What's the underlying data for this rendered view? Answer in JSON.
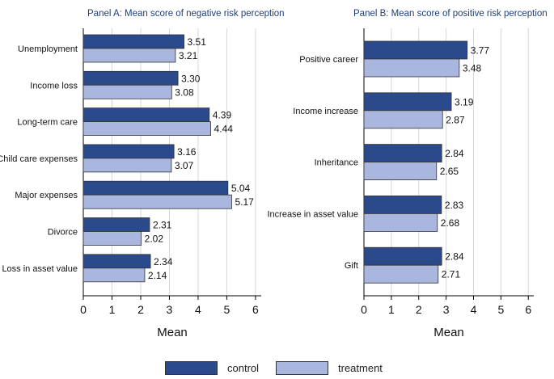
{
  "colors": {
    "control": "#2b4a8b",
    "treatment": "#a9b7df",
    "title": "#1f3f7a",
    "grid": "#d7d7d7"
  },
  "chart_data": [
    {
      "type": "bar",
      "orientation": "horizontal",
      "title": "Panel A: Mean score of negative risk perception",
      "xlabel": "Mean",
      "xlim": [
        0,
        6.2
      ],
      "xticks": [
        0,
        1,
        2,
        3,
        4,
        5,
        6
      ],
      "grid": true,
      "categories": [
        "Unemployment",
        "Income loss",
        "Long-term care",
        "Child care expenses",
        "Major expenses",
        "Divorce",
        "Loss in asset value"
      ],
      "series": [
        {
          "name": "control",
          "values": [
            3.51,
            3.3,
            4.39,
            3.16,
            5.04,
            2.31,
            2.34
          ],
          "labels": [
            "3.51",
            "3.30",
            "4.39",
            "3.16",
            "5.04",
            "2.31",
            "2.34"
          ]
        },
        {
          "name": "treatment",
          "values": [
            3.21,
            3.08,
            4.44,
            3.07,
            5.17,
            2.02,
            2.14
          ],
          "labels": [
            "3.21",
            "3.08",
            "4.44",
            "3.07",
            "5.17",
            "2.02",
            "2.14"
          ]
        }
      ]
    },
    {
      "type": "bar",
      "orientation": "horizontal",
      "title": "Panel B: Mean score of positive risk perception",
      "xlabel": "Mean",
      "xlim": [
        0,
        6.2
      ],
      "xticks": [
        0,
        1,
        2,
        3,
        4,
        5,
        6
      ],
      "grid": true,
      "categories": [
        "Positive career",
        "Income increase",
        "Inheritance",
        "Increase in asset value",
        "Gift"
      ],
      "series": [
        {
          "name": "control",
          "values": [
            3.77,
            3.19,
            2.84,
            2.83,
            2.84
          ],
          "labels": [
            "3.77",
            "3.19",
            "2.84",
            "2.83",
            "2.84"
          ]
        },
        {
          "name": "treatment",
          "values": [
            3.48,
            2.87,
            2.65,
            2.68,
            2.71
          ],
          "labels": [
            "3.48",
            "2.87",
            "2.65",
            "2.68",
            "2.71"
          ]
        }
      ]
    }
  ],
  "legend": {
    "placement": "bottom",
    "items": [
      {
        "label": "control",
        "color": "#2b4a8b"
      },
      {
        "label": "treatment",
        "color": "#a9b7df"
      }
    ]
  }
}
